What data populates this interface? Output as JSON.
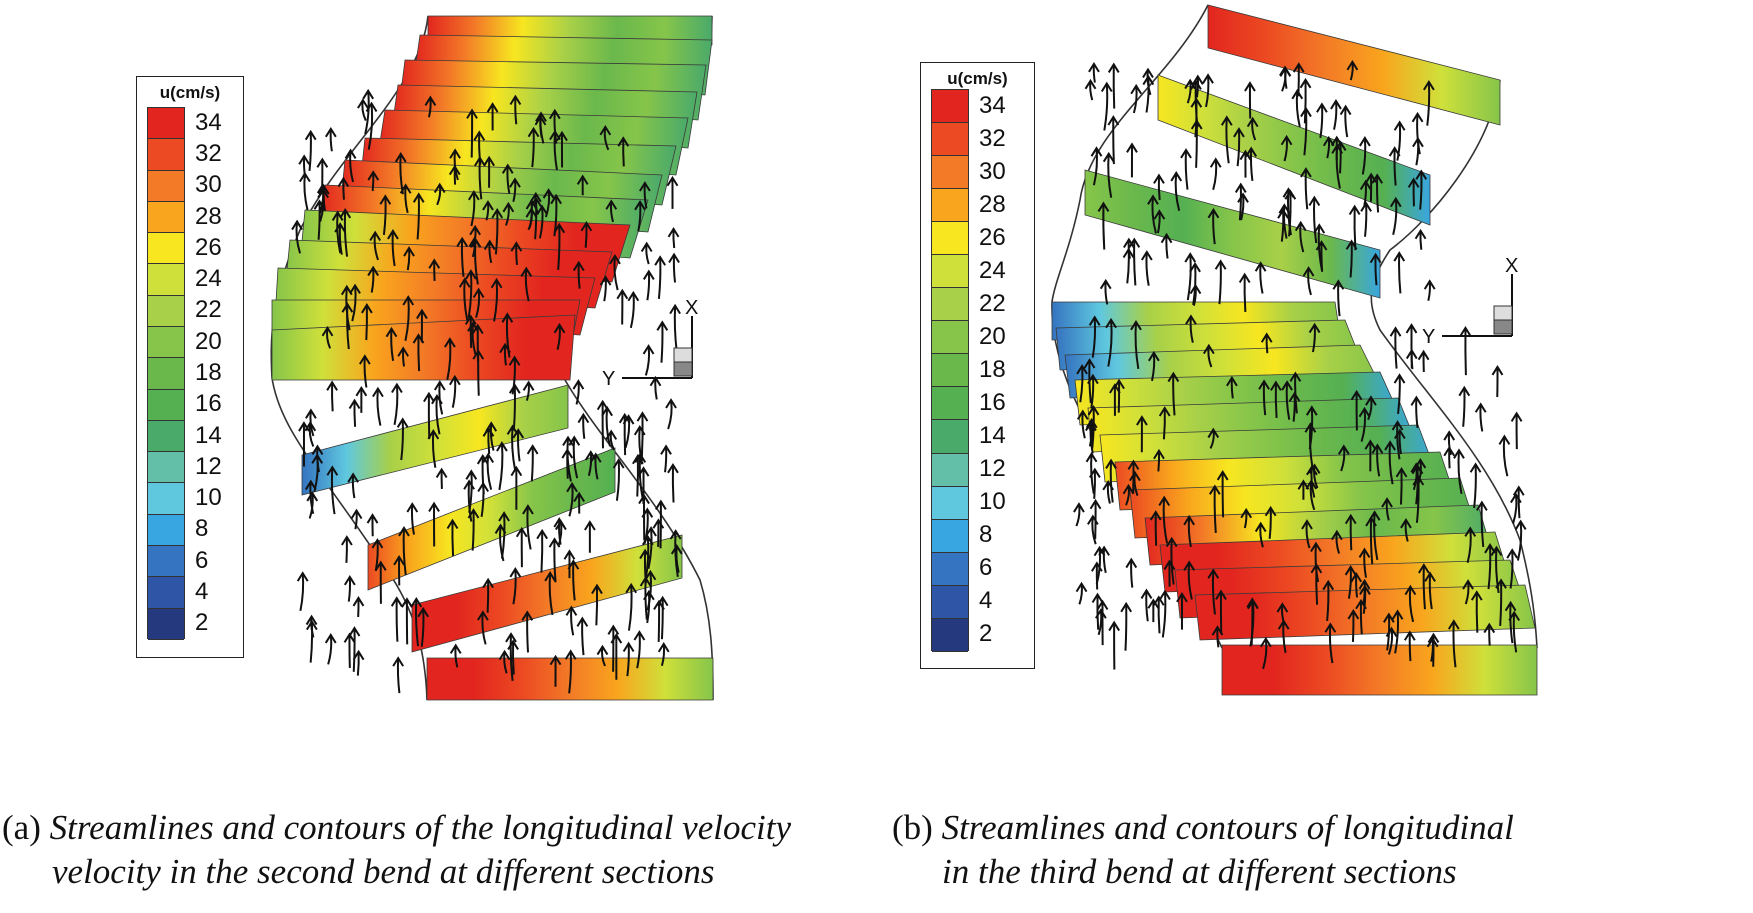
{
  "legend": {
    "title": "u(cm/s)",
    "ticks": [
      "34",
      "32",
      "30",
      "28",
      "26",
      "24",
      "22",
      "20",
      "18",
      "16",
      "14",
      "12",
      "10",
      "8",
      "6",
      "4",
      "2"
    ],
    "colors": [
      "#e2261f",
      "#ec4a22",
      "#f37a27",
      "#f9a51d",
      "#f7e620",
      "#cfe03a",
      "#a8d048",
      "#86c54a",
      "#6ab84c",
      "#55b052",
      "#4aaa6a",
      "#63bfa8",
      "#5fc8df",
      "#38a6e0",
      "#3574c0",
      "#2f55a6",
      "#25397f"
    ]
  },
  "panels": [
    {
      "label": "(a)",
      "caption_line1": "Streamlines and contours of the longitudinal velocity",
      "caption_line2": "velocity in the second bend at different sections",
      "axis_horizontal": "Y",
      "axis_vertical": "X"
    },
    {
      "label": "(b)",
      "caption_line1": "Streamlines and contours of longitudinal",
      "caption_line2": "in the third bend at different sections",
      "axis_horizontal": "Y",
      "axis_vertical": "X"
    }
  ]
}
